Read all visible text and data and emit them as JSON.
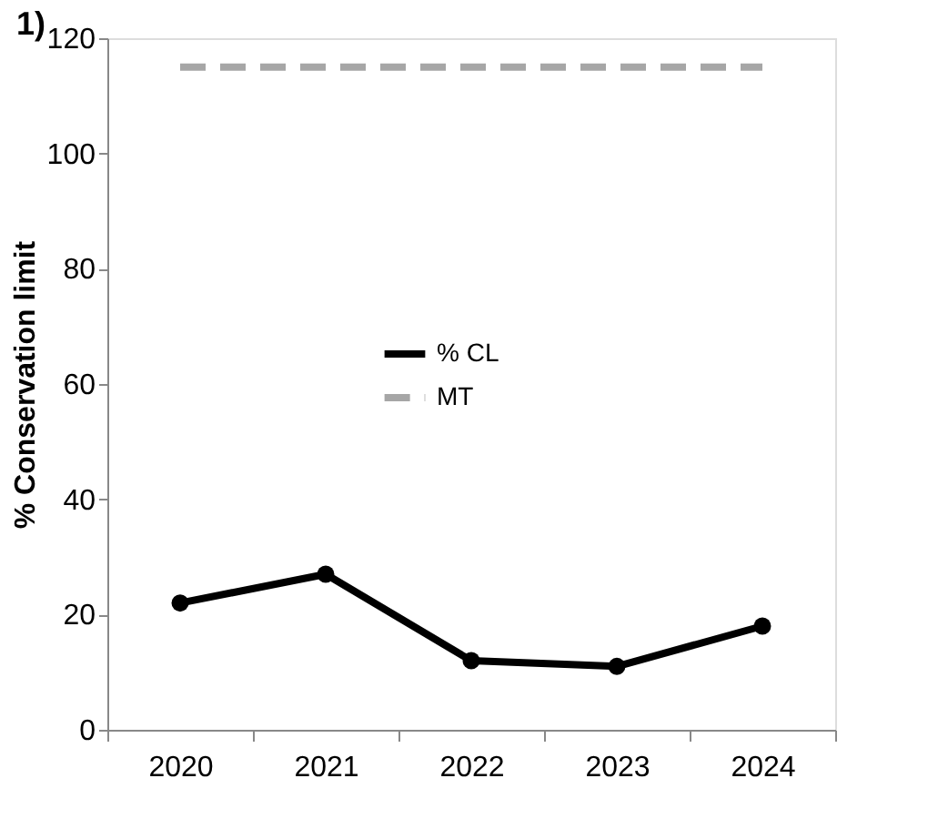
{
  "chart_data": {
    "type": "line",
    "title": "1)",
    "ylabel": "% Conservation limit",
    "categories": [
      "2020",
      "2021",
      "2022",
      "2023",
      "2024"
    ],
    "series": [
      {
        "name": "% CL",
        "color": "#000000",
        "values": [
          22,
          27,
          12,
          11,
          18
        ],
        "marker": "circle",
        "line_style": "solid"
      },
      {
        "name": "MT",
        "color": "#a6a6a6",
        "values": [
          115,
          115,
          115,
          115,
          115
        ],
        "marker": "none",
        "line_style": "dashed"
      }
    ],
    "ylim": [
      0,
      120
    ],
    "yticks": [
      0,
      20,
      40,
      60,
      80,
      100,
      120
    ],
    "grid": false,
    "legend": "center"
  }
}
